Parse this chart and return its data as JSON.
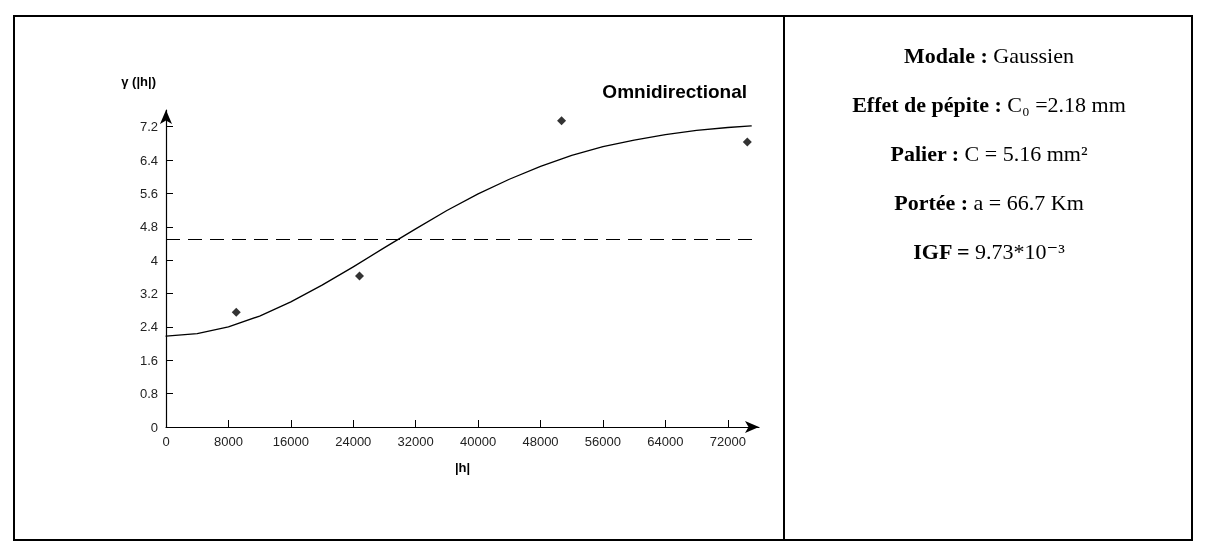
{
  "chart_data": [
    {
      "type": "scatter",
      "title": "Omnidirectional",
      "xlabel": "|h|",
      "ylabel": "γ (|h|)",
      "xlim": [
        0,
        76000
      ],
      "ylim": [
        0,
        7.6
      ],
      "xticks": [
        0,
        8000,
        16000,
        24000,
        32000,
        40000,
        48000,
        56000,
        64000,
        72000
      ],
      "yticks": [
        0,
        0.8,
        1.6,
        2.4,
        3.2,
        4,
        4.8,
        5.6,
        6.4,
        7.2
      ],
      "series": [
        {
          "type": "scatter",
          "color": "#000000",
          "marker": "diamond",
          "x": [
            9000,
            24800,
            50700,
            74500
          ],
          "values": [
            2.75,
            3.62,
            7.34,
            6.83
          ]
        },
        {
          "type": "line",
          "color": "#000000",
          "marker": "none",
          "line_style": "solid",
          "x": [
            0,
            4000,
            8000,
            12000,
            16000,
            20000,
            24000,
            28000,
            32000,
            36000,
            40000,
            44000,
            48000,
            52000,
            56000,
            60000,
            64000,
            68000,
            72000,
            75000
          ],
          "values": [
            2.18,
            2.24,
            2.4,
            2.66,
            3.0,
            3.4,
            3.84,
            4.3,
            4.75,
            5.19,
            5.59,
            5.94,
            6.25,
            6.51,
            6.72,
            6.88,
            7.01,
            7.11,
            7.18,
            7.22
          ]
        }
      ],
      "ref_lines": [
        {
          "axis": "y",
          "value": 4.5,
          "color": "#000000",
          "line_style": "dashed"
        }
      ]
    },
    {
      "type": "other",
      "annotations": [
        "Modale : Gaussien",
        "Effet de pépite : C₀ =2.18 mm",
        "Palier : C = 5.16 mm²",
        "Portée : a = 66.7 Km",
        "IGF = 9.73*10⁻³"
      ]
    }
  ]
}
